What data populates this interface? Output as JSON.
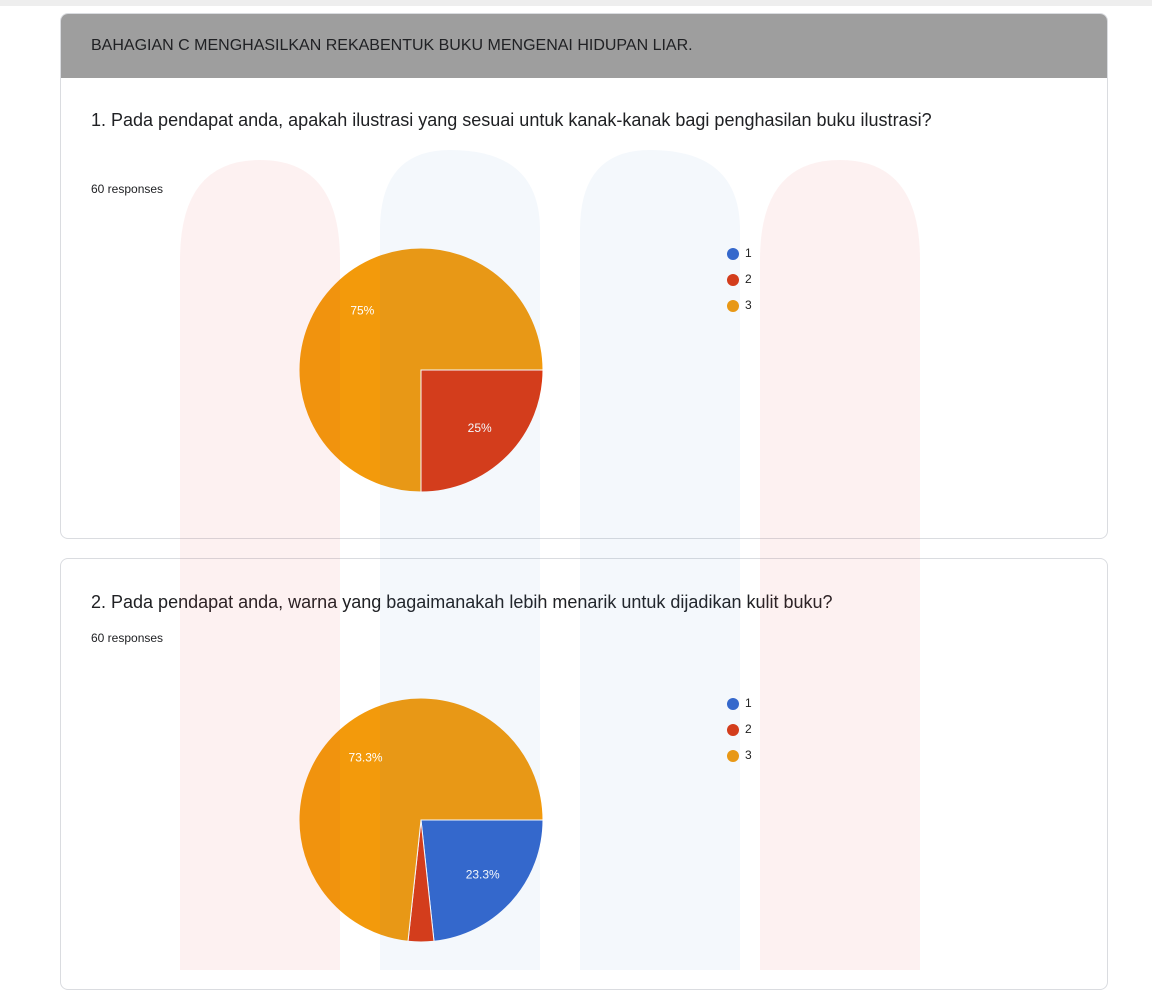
{
  "header": {
    "title": "BAHAGIAN C MENGHASILKAN REKABENTUK BUKU MENGENAI HIDUPAN LIAR."
  },
  "questions": [
    {
      "title": "1. Pada pendapat anda, apakah ilustrasi yang sesuai untuk kanak-kanak bagi penghasilan buku ilustrasi?",
      "responses": "60 responses"
    },
    {
      "title": "2. Pada pendapat anda, warna yang bagaimanakah lebih menarik untuk dijadikan kulit buku?",
      "responses": "60 responses"
    }
  ],
  "chart_data": [
    {
      "type": "pie",
      "categories": [
        "1",
        "2",
        "3"
      ],
      "values": [
        0,
        25,
        75
      ],
      "value_labels": [
        null,
        "25%",
        "75%"
      ],
      "colors": [
        "#3366cc",
        "#dc3912",
        "#f39a0b"
      ],
      "legend": "right"
    },
    {
      "type": "pie",
      "categories": [
        "1",
        "2",
        "3"
      ],
      "values": [
        23.3,
        3.4,
        73.3
      ],
      "value_labels": [
        "23.3%",
        null,
        "73.3%"
      ],
      "colors": [
        "#3366cc",
        "#dc3912",
        "#f39a0b"
      ],
      "legend": "right"
    }
  ]
}
